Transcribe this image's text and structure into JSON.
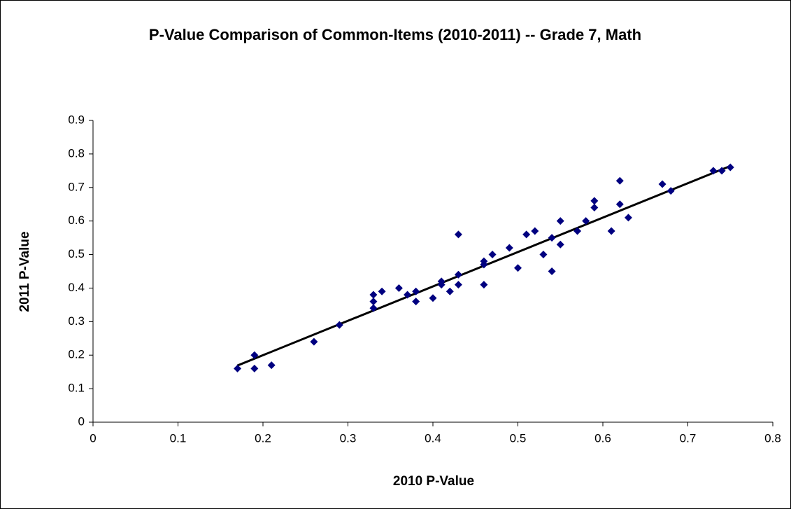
{
  "chart_data": {
    "type": "scatter",
    "title": "P-Value Comparison of Common-Items (2010-2011) -- Grade 7, Math",
    "x_label": "2010 P-Value",
    "y_label": "2011 P-Value",
    "series": [
      {
        "color": "#000080",
        "x": [
          0.17,
          0.19,
          0.19,
          0.21,
          0.26,
          0.29,
          0.33,
          0.33,
          0.33,
          0.34,
          0.36,
          0.37,
          0.38,
          0.38,
          0.4,
          0.41,
          0.41,
          0.42,
          0.43,
          0.43,
          0.43,
          0.46,
          0.46,
          0.47,
          0.46,
          0.49,
          0.5,
          0.51,
          0.52,
          0.53,
          0.54,
          0.54,
          0.55,
          0.55,
          0.57,
          0.58,
          0.59,
          0.59,
          0.61,
          0.62,
          0.62,
          0.63,
          0.67,
          0.68,
          0.73,
          0.74,
          0.75
        ],
        "values": [
          0.16,
          0.2,
          0.16,
          0.17,
          0.24,
          0.29,
          0.34,
          0.36,
          0.38,
          0.39,
          0.4,
          0.38,
          0.36,
          0.39,
          0.37,
          0.41,
          0.42,
          0.39,
          0.56,
          0.44,
          0.41,
          0.48,
          0.47,
          0.5,
          0.41,
          0.52,
          0.46,
          0.56,
          0.57,
          0.5,
          0.55,
          0.45,
          0.6,
          0.53,
          0.57,
          0.6,
          0.66,
          0.64,
          0.57,
          0.72,
          0.65,
          0.61,
          0.71,
          0.69,
          0.75,
          0.75,
          0.76
        ]
      }
    ],
    "trendline": {
      "color": "#000000",
      "x": [
        0.17,
        0.75
      ],
      "values": [
        0.169,
        0.764
      ]
    },
    "xlim": [
      0,
      0.8
    ],
    "xticks": [
      0,
      0.1,
      0.2,
      0.3,
      0.4,
      0.5,
      0.6,
      0.7,
      0.8
    ],
    "ylim": [
      0,
      0.9
    ],
    "yticks": [
      0,
      0.1,
      0.2,
      0.3,
      0.4,
      0.5,
      0.6,
      0.7,
      0.8,
      0.9
    ],
    "grid": false
  }
}
